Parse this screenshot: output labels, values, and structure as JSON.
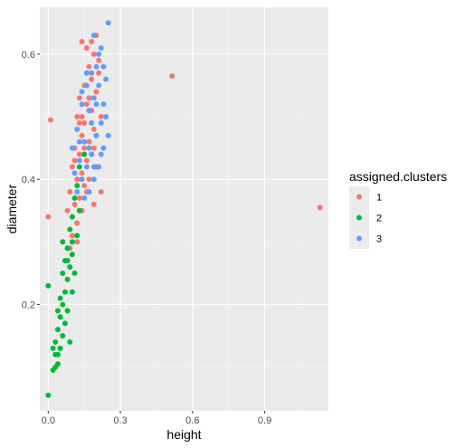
{
  "chart_data": {
    "type": "scatter",
    "xlabel": "height",
    "ylabel": "diameter",
    "xlim": [
      -0.035,
      1.165
    ],
    "ylim": [
      0.03,
      0.675
    ],
    "x_ticks": [
      0.0,
      0.3,
      0.6,
      0.9
    ],
    "x_tick_labels": [
      "0.0",
      "0.3",
      "0.6",
      "0.9"
    ],
    "y_ticks": [
      0.2,
      0.4,
      0.6
    ],
    "y_tick_labels": [
      "0.2",
      "0.4",
      "0.6"
    ],
    "grid": true,
    "legend": {
      "title": "assigned.clusters",
      "position": "right",
      "entries": [
        {
          "label": "1",
          "color": "#F8766D"
        },
        {
          "label": "2",
          "color": "#00BA38"
        },
        {
          "label": "3",
          "color": "#619CFF"
        }
      ]
    },
    "series": [
      {
        "name": "1",
        "color": "#F8766D",
        "points": [
          [
            0.0,
            0.34
          ],
          [
            0.01,
            0.495
          ],
          [
            0.515,
            0.565
          ],
          [
            1.13,
            0.355
          ],
          [
            0.14,
            0.62
          ],
          [
            0.16,
            0.61
          ],
          [
            0.2,
            0.63
          ],
          [
            0.19,
            0.6
          ],
          [
            0.17,
            0.58
          ],
          [
            0.15,
            0.55
          ],
          [
            0.18,
            0.56
          ],
          [
            0.21,
            0.59
          ],
          [
            0.13,
            0.53
          ],
          [
            0.16,
            0.52
          ],
          [
            0.2,
            0.54
          ],
          [
            0.12,
            0.5
          ],
          [
            0.15,
            0.49
          ],
          [
            0.18,
            0.51
          ],
          [
            0.14,
            0.47
          ],
          [
            0.17,
            0.46
          ],
          [
            0.11,
            0.45
          ],
          [
            0.19,
            0.48
          ],
          [
            0.13,
            0.44
          ],
          [
            0.16,
            0.43
          ],
          [
            0.1,
            0.42
          ],
          [
            0.14,
            0.41
          ],
          [
            0.18,
            0.44
          ],
          [
            0.12,
            0.4
          ],
          [
            0.15,
            0.39
          ],
          [
            0.09,
            0.38
          ],
          [
            0.13,
            0.37
          ],
          [
            0.17,
            0.4
          ],
          [
            0.11,
            0.36
          ],
          [
            0.14,
            0.35
          ],
          [
            0.1,
            0.34
          ],
          [
            0.12,
            0.33
          ],
          [
            0.2,
            0.42
          ],
          [
            0.16,
            0.38
          ],
          [
            0.08,
            0.35
          ],
          [
            0.22,
            0.5
          ],
          [
            0.21,
            0.57
          ],
          [
            0.18,
            0.62
          ],
          [
            0.13,
            0.49
          ],
          [
            0.19,
            0.45
          ],
          [
            0.1,
            0.31
          ],
          [
            0.12,
            0.3
          ],
          [
            0.09,
            0.29
          ],
          [
            0.15,
            0.45
          ],
          [
            0.2,
            0.47
          ],
          [
            0.17,
            0.53
          ],
          [
            0.14,
            0.5
          ],
          [
            0.11,
            0.43
          ],
          [
            0.22,
            0.38
          ],
          [
            0.19,
            0.36
          ]
        ]
      },
      {
        "name": "2",
        "color": "#00BA38",
        "points": [
          [
            0.0,
            0.055
          ],
          [
            0.0,
            0.23
          ],
          [
            0.02,
            0.095
          ],
          [
            0.03,
            0.12
          ],
          [
            0.04,
            0.105
          ],
          [
            0.03,
            0.14
          ],
          [
            0.05,
            0.13
          ],
          [
            0.04,
            0.16
          ],
          [
            0.06,
            0.15
          ],
          [
            0.05,
            0.18
          ],
          [
            0.07,
            0.17
          ],
          [
            0.06,
            0.2
          ],
          [
            0.08,
            0.19
          ],
          [
            0.05,
            0.21
          ],
          [
            0.07,
            0.22
          ],
          [
            0.08,
            0.24
          ],
          [
            0.06,
            0.25
          ],
          [
            0.09,
            0.26
          ],
          [
            0.07,
            0.27
          ],
          [
            0.1,
            0.28
          ],
          [
            0.08,
            0.29
          ],
          [
            0.1,
            0.3
          ],
          [
            0.06,
            0.3
          ],
          [
            0.09,
            0.32
          ],
          [
            0.12,
            0.31
          ],
          [
            0.1,
            0.34
          ],
          [
            0.13,
            0.35
          ],
          [
            0.11,
            0.37
          ],
          [
            0.12,
            0.39
          ],
          [
            0.14,
            0.4
          ],
          [
            0.13,
            0.42
          ],
          [
            0.15,
            0.44
          ],
          [
            0.04,
            0.12
          ],
          [
            0.09,
            0.14
          ],
          [
            0.03,
            0.1
          ],
          [
            0.1,
            0.22
          ],
          [
            0.11,
            0.25
          ],
          [
            0.04,
            0.19
          ],
          [
            0.02,
            0.13
          ],
          [
            0.08,
            0.27
          ]
        ]
      },
      {
        "name": "3",
        "color": "#619CFF",
        "points": [
          [
            0.25,
            0.65
          ],
          [
            0.19,
            0.63
          ],
          [
            0.22,
            0.61
          ],
          [
            0.2,
            0.58
          ],
          [
            0.18,
            0.57
          ],
          [
            0.16,
            0.55
          ],
          [
            0.21,
            0.55
          ],
          [
            0.14,
            0.54
          ],
          [
            0.23,
            0.52
          ],
          [
            0.19,
            0.53
          ],
          [
            0.24,
            0.5
          ],
          [
            0.17,
            0.51
          ],
          [
            0.22,
            0.49
          ],
          [
            0.12,
            0.48
          ],
          [
            0.2,
            0.47
          ],
          [
            0.15,
            0.46
          ],
          [
            0.23,
            0.45
          ],
          [
            0.1,
            0.45
          ],
          [
            0.18,
            0.44
          ],
          [
            0.13,
            0.43
          ],
          [
            0.21,
            0.42
          ],
          [
            0.16,
            0.42
          ],
          [
            0.11,
            0.41
          ],
          [
            0.19,
            0.4
          ],
          [
            0.14,
            0.4
          ],
          [
            0.17,
            0.38
          ],
          [
            0.15,
            0.37
          ],
          [
            0.12,
            0.38
          ],
          [
            0.2,
            0.52
          ],
          [
            0.24,
            0.56
          ],
          [
            0.21,
            0.6
          ],
          [
            0.16,
            0.57
          ],
          [
            0.25,
            0.47
          ],
          [
            0.18,
            0.49
          ],
          [
            0.13,
            0.46
          ],
          [
            0.22,
            0.44
          ],
          [
            0.17,
            0.45
          ],
          [
            0.14,
            0.52
          ],
          [
            0.23,
            0.58
          ],
          [
            0.19,
            0.42
          ]
        ]
      }
    ]
  }
}
